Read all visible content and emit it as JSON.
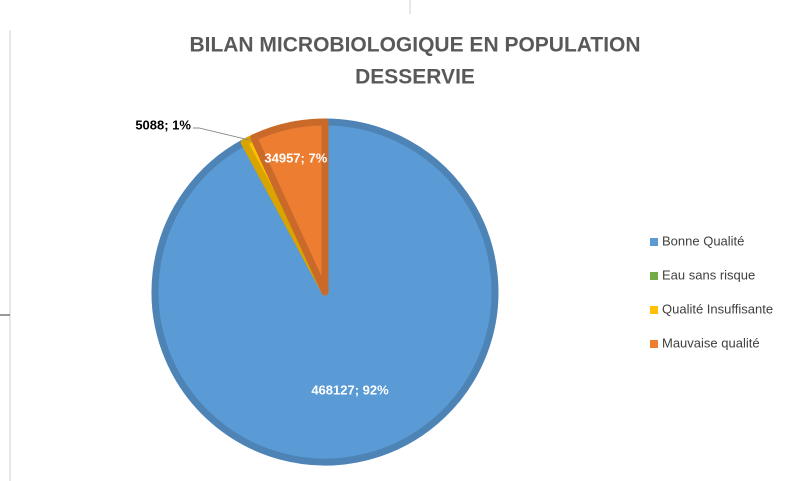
{
  "chart_data": {
    "type": "pie",
    "title": [
      "BILAN MICROBIOLOGIQUE EN POPULATION",
      "DESSERVIE"
    ],
    "categories": [
      "Bonne Qualité",
      "Eau sans risque",
      "Qualité Insuffisante",
      "Mauvaise qualité"
    ],
    "values": [
      468127,
      0,
      5088,
      34957
    ],
    "value_labels": [
      "468127; 92%",
      null,
      "5088; 1%",
      "34957; 7%"
    ],
    "colors": [
      "#5b9bd5",
      "#70ad47",
      "#ffc000",
      "#ed7d31"
    ],
    "legend": "right"
  }
}
